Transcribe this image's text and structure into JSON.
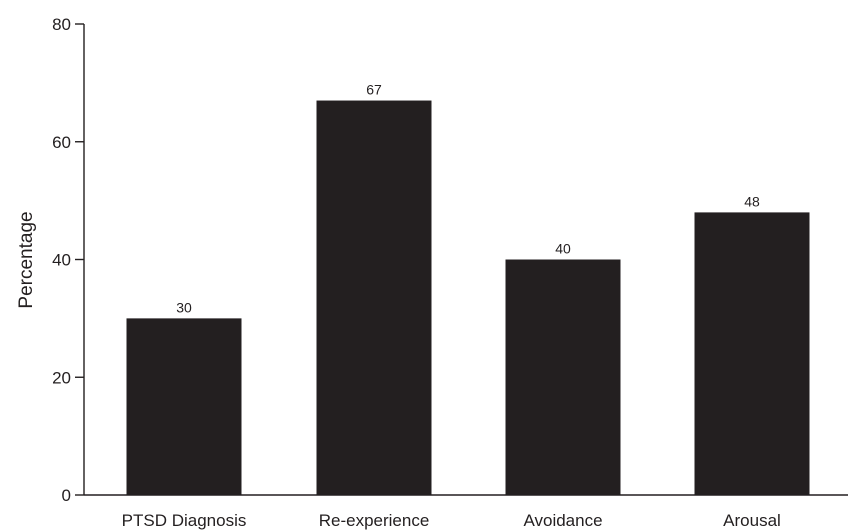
{
  "chart_data": {
    "type": "bar",
    "title": "",
    "xlabel": "",
    "ylabel": "Percentage",
    "categories": [
      "PTSD Diagnosis",
      "Re-experience",
      "Avoidance",
      "Arousal"
    ],
    "values": [
      30,
      67,
      40,
      48
    ],
    "data_labels": [
      "30",
      "67",
      "40",
      "48"
    ],
    "ylim": [
      0,
      80
    ],
    "yticks": [
      0,
      20,
      40,
      60,
      80
    ],
    "ytick_labels": [
      "0",
      "20",
      "40",
      "60",
      "80"
    ],
    "grid": false,
    "legend": "none",
    "bar_color": "#231f20",
    "axis_color": "#231f20"
  }
}
